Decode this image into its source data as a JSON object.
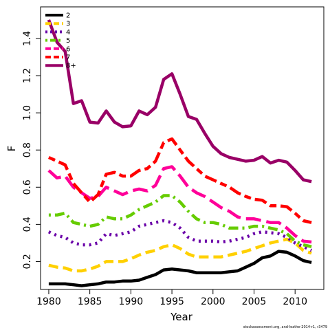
{
  "chart_data": {
    "type": "line",
    "title": "",
    "xlabel": "Year",
    "ylabel": "F",
    "xlim": [
      1979,
      2013.5
    ],
    "ylim": [
      0.05,
      1.57
    ],
    "x_ticks": [
      "1980",
      "1985",
      "1990",
      "1995",
      "2000",
      "2005",
      "2010"
    ],
    "y_ticks": [
      "0.2",
      "0.4",
      "0.6",
      "0.8",
      "1.0",
      "1.2",
      "1.4"
    ],
    "legend_position": "top-left",
    "grid": false,
    "x": [
      1980,
      1981,
      1982,
      1983,
      1984,
      1985,
      1986,
      1987,
      1988,
      1989,
      1990,
      1991,
      1992,
      1993,
      1994,
      1995,
      1996,
      1997,
      1998,
      1999,
      2000,
      2001,
      2002,
      2003,
      2004,
      2005,
      2006,
      2007,
      2008,
      2009,
      2010,
      2011,
      2012
    ],
    "series": [
      {
        "name": "2",
        "color": "#000000",
        "dash": "solid",
        "values": [
          0.08,
          0.08,
          0.08,
          0.075,
          0.07,
          0.075,
          0.08,
          0.09,
          0.09,
          0.095,
          0.095,
          0.1,
          0.115,
          0.13,
          0.155,
          0.16,
          0.155,
          0.15,
          0.14,
          0.14,
          0.14,
          0.14,
          0.145,
          0.15,
          0.17,
          0.19,
          0.22,
          0.23,
          0.255,
          0.25,
          0.23,
          0.205,
          0.195
        ]
      },
      {
        "name": "3",
        "color": "#ffd000",
        "dash": "dashed",
        "values": [
          0.18,
          0.17,
          0.165,
          0.15,
          0.15,
          0.16,
          0.175,
          0.2,
          0.2,
          0.2,
          0.215,
          0.235,
          0.25,
          0.26,
          0.28,
          0.29,
          0.27,
          0.24,
          0.225,
          0.225,
          0.225,
          0.225,
          0.235,
          0.245,
          0.255,
          0.27,
          0.285,
          0.3,
          0.31,
          0.32,
          0.3,
          0.26,
          0.245
        ]
      },
      {
        "name": "4",
        "color": "#6a00a8",
        "dash": "dotted",
        "values": [
          0.36,
          0.34,
          0.33,
          0.3,
          0.29,
          0.29,
          0.3,
          0.35,
          0.34,
          0.35,
          0.36,
          0.39,
          0.4,
          0.41,
          0.42,
          0.41,
          0.38,
          0.33,
          0.31,
          0.31,
          0.31,
          0.305,
          0.31,
          0.32,
          0.33,
          0.35,
          0.36,
          0.355,
          0.35,
          0.33,
          0.3,
          0.28,
          0.26
        ]
      },
      {
        "name": "5",
        "color": "#66cc00",
        "dash": "dotdash",
        "values": [
          0.45,
          0.45,
          0.46,
          0.41,
          0.4,
          0.39,
          0.4,
          0.44,
          0.43,
          0.43,
          0.45,
          0.48,
          0.5,
          0.52,
          0.555,
          0.555,
          0.52,
          0.47,
          0.43,
          0.41,
          0.41,
          0.4,
          0.38,
          0.38,
          0.38,
          0.39,
          0.39,
          0.38,
          0.37,
          0.35,
          0.31,
          0.29,
          0.28
        ]
      },
      {
        "name": "6",
        "color": "#ff0099",
        "dash": "longdash",
        "values": [
          0.69,
          0.65,
          0.66,
          0.6,
          0.57,
          0.54,
          0.55,
          0.6,
          0.58,
          0.56,
          0.58,
          0.59,
          0.58,
          0.61,
          0.7,
          0.71,
          0.66,
          0.6,
          0.57,
          0.55,
          0.52,
          0.49,
          0.47,
          0.44,
          0.43,
          0.43,
          0.42,
          0.41,
          0.41,
          0.38,
          0.34,
          0.31,
          0.305
        ]
      },
      {
        "name": "7",
        "color": "#ff0000",
        "dash": "twodash",
        "values": [
          0.76,
          0.74,
          0.72,
          0.62,
          0.57,
          0.52,
          0.56,
          0.67,
          0.68,
          0.66,
          0.66,
          0.69,
          0.7,
          0.74,
          0.84,
          0.86,
          0.8,
          0.74,
          0.7,
          0.66,
          0.64,
          0.62,
          0.6,
          0.57,
          0.55,
          0.535,
          0.53,
          0.5,
          0.5,
          0.495,
          0.46,
          0.42,
          0.41
        ]
      },
      {
        "name": "8+",
        "color": "#990066",
        "dash": "solid",
        "values": [
          1.5,
          1.38,
          1.33,
          1.05,
          1.065,
          0.95,
          0.945,
          1.01,
          0.95,
          0.925,
          0.93,
          1.01,
          0.99,
          1.03,
          1.18,
          1.21,
          1.1,
          0.98,
          0.965,
          0.89,
          0.82,
          0.78,
          0.76,
          0.75,
          0.74,
          0.745,
          0.765,
          0.73,
          0.745,
          0.735,
          0.69,
          0.64,
          0.63
        ]
      }
    ],
    "caption": "stockassessment.org, and-leathe-2014-r1, r3479"
  }
}
